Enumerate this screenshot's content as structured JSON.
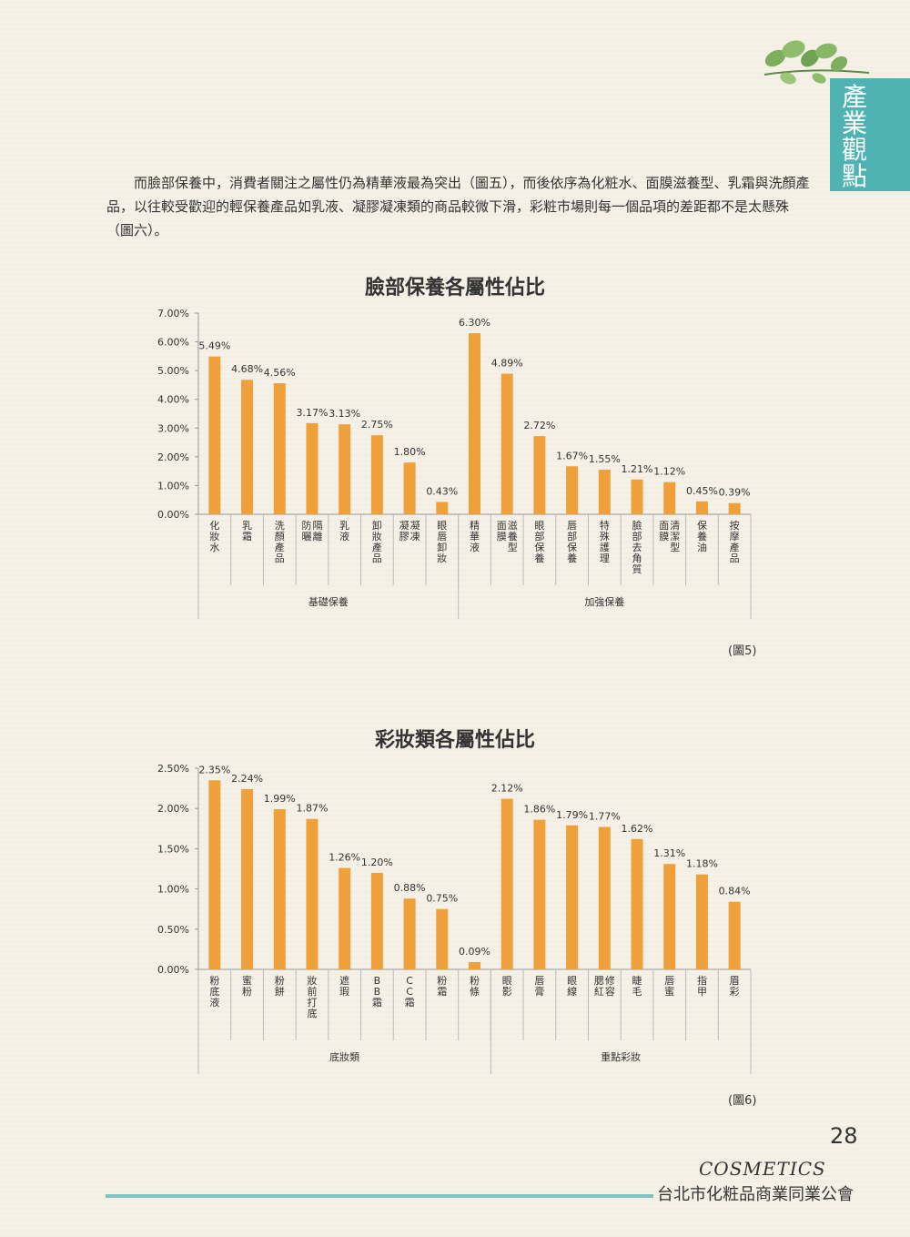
{
  "section_tab": "產業觀點",
  "intro_text": "而臉部保養中，消費者關注之屬性仍為精華液最為突出（圖五），而後依序為化粧水、面膜滋養型、乳霜與洗顏產品，以往較受歡迎的輕保養產品如乳液、凝膠凝凍類的商品較微下滑，彩粧市場則每一個品項的差距都不是太懸殊（圖六）。",
  "figure5_caption": "(圖5)",
  "figure6_caption": "(圖6)",
  "page_number": "28",
  "brand_name": "COSMETICS",
  "association_name": "台北市化粧品商業同業公會",
  "colors": {
    "bar": "#f0a03a",
    "accent": "#4fb3b4",
    "leaf": "#7cae5e"
  },
  "chart_data": [
    {
      "type": "bar",
      "title": "臉部保養各屬性佔比",
      "categories": [
        "化妝水",
        "乳霜",
        "洗顏產品",
        "防曬/隔離",
        "乳液",
        "卸妝產品",
        "凝膠/凝凍",
        "眼唇卸妝",
        "精華液",
        "面膜 滋養型",
        "眼部保養",
        "唇部保養",
        "特殊護理",
        "臉部去角質",
        "面膜 清潔型",
        "保養油",
        "按摩產品"
      ],
      "values": [
        5.49,
        4.68,
        4.56,
        3.17,
        3.13,
        2.75,
        1.8,
        0.43,
        6.3,
        4.89,
        2.72,
        1.67,
        1.55,
        1.21,
        1.12,
        0.45,
        0.39
      ],
      "value_labels": [
        "5.49%",
        "4.68%",
        "4.56%",
        "3.17%",
        "3.13%",
        "2.75%",
        "1.80%",
        "0.43%",
        "6.30%",
        "4.89%",
        "2.72%",
        "1.67%",
        "1.55%",
        "1.21%",
        "1.12%",
        "0.45%",
        "0.39%"
      ],
      "groups": [
        {
          "name": "基礎保養",
          "count": 8
        },
        {
          "name": "加強保養",
          "count": 9
        }
      ],
      "yticks": [
        "0.00%",
        "1.00%",
        "2.00%",
        "3.00%",
        "4.00%",
        "5.00%",
        "6.00%",
        "7.00%"
      ],
      "ylim": [
        0,
        7
      ],
      "grid": false,
      "legend": "none"
    },
    {
      "type": "bar",
      "title": "彩妝類各屬性佔比",
      "categories": [
        "粉底液",
        "蜜粉",
        "粉餅",
        "妝前打底",
        "遮瑕",
        "BB霜",
        "CC霜",
        "粉霜",
        "粉條",
        "眼影",
        "唇膏",
        "眼線",
        "腮紅/修容",
        "睫毛",
        "唇蜜",
        "指甲",
        "眉彩"
      ],
      "values": [
        2.35,
        2.24,
        1.99,
        1.87,
        1.26,
        1.2,
        0.88,
        0.75,
        0.09,
        2.12,
        1.86,
        1.79,
        1.77,
        1.62,
        1.31,
        1.18,
        0.84
      ],
      "value_labels": [
        "2.35%",
        "2.24%",
        "1.99%",
        "1.87%",
        "1.26%",
        "1.20%",
        "0.88%",
        "0.75%",
        "0.09%",
        "2.12%",
        "1.86%",
        "1.79%",
        "1.77%",
        "1.62%",
        "1.31%",
        "1.18%",
        "0.84%"
      ],
      "groups": [
        {
          "name": "底妝類",
          "count": 9
        },
        {
          "name": "重點彩妝",
          "count": 8
        }
      ],
      "yticks": [
        "0.00%",
        "0.50%",
        "1.00%",
        "1.50%",
        "2.00%",
        "2.50%"
      ],
      "ylim": [
        0,
        2.5
      ],
      "grid": false,
      "legend": "none"
    }
  ]
}
